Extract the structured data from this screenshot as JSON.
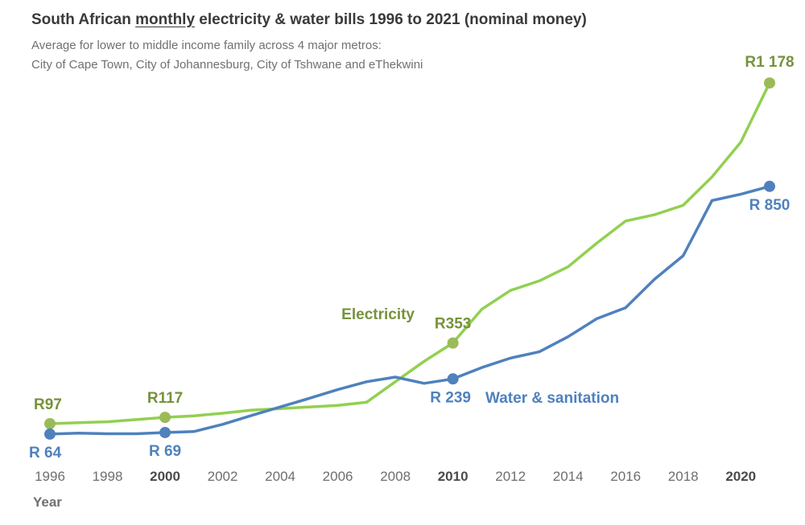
{
  "header": {
    "title_pre": "South African ",
    "title_em": "monthly",
    "title_post": " electricity & water bills 1996 to 2021 (nominal money)",
    "subtitle_line1": "Average for lower to middle income family across 4 major metros:",
    "subtitle_line2": "City of Cape Town, City of Johannesburg, City of Tshwane and eThekwini"
  },
  "colors": {
    "electricity": "#92d050",
    "electricity_label": "#76923c",
    "water": "#4f81bd",
    "water_label": "#4f81bd"
  },
  "chart_data": {
    "type": "line",
    "xlabel": "Year",
    "xlim": [
      1996,
      2021
    ],
    "ylim": [
      0,
      1250
    ],
    "grid": false,
    "x_ticks": [
      1996,
      1998,
      2000,
      2002,
      2004,
      2006,
      2008,
      2010,
      2012,
      2014,
      2016,
      2018,
      2020
    ],
    "x_ticks_bold": [
      2000,
      2010,
      2020
    ],
    "x": [
      1996,
      1997,
      1998,
      1999,
      2000,
      2001,
      2002,
      2003,
      2004,
      2005,
      2006,
      2007,
      2008,
      2009,
      2010,
      2011,
      2012,
      2013,
      2014,
      2015,
      2016,
      2017,
      2018,
      2019,
      2020,
      2021
    ],
    "series": [
      {
        "name": "Electricity",
        "values": [
          97,
          100,
          103,
          110,
          117,
          122,
          130,
          140,
          145,
          150,
          155,
          165,
          230,
          295,
          353,
          460,
          520,
          550,
          595,
          670,
          740,
          760,
          790,
          880,
          990,
          1178
        ],
        "annotations": [
          {
            "x": 1996,
            "y": 97,
            "text": "R97",
            "position": "above"
          },
          {
            "x": 2000,
            "y": 117,
            "text": "R117",
            "position": "above"
          },
          {
            "x": 2010,
            "y": 353,
            "text": "R353",
            "position": "above"
          },
          {
            "x": 2021,
            "y": 1178,
            "text": "R1 178",
            "position": "above"
          }
        ]
      },
      {
        "name": "Water & sanitation",
        "values": [
          64,
          67,
          65,
          65,
          69,
          72,
          95,
          123,
          150,
          177,
          205,
          230,
          245,
          225,
          239,
          275,
          305,
          325,
          373,
          430,
          465,
          555,
          630,
          805,
          825,
          850
        ],
        "annotations": [
          {
            "x": 1996,
            "y": 64,
            "text": "R 64",
            "position": "below"
          },
          {
            "x": 2000,
            "y": 69,
            "text": "R 69",
            "position": "below"
          },
          {
            "x": 2010,
            "y": 239,
            "text": "R 239",
            "position": "below"
          },
          {
            "x": 2021,
            "y": 850,
            "text": "R 850",
            "position": "below"
          }
        ]
      }
    ]
  }
}
